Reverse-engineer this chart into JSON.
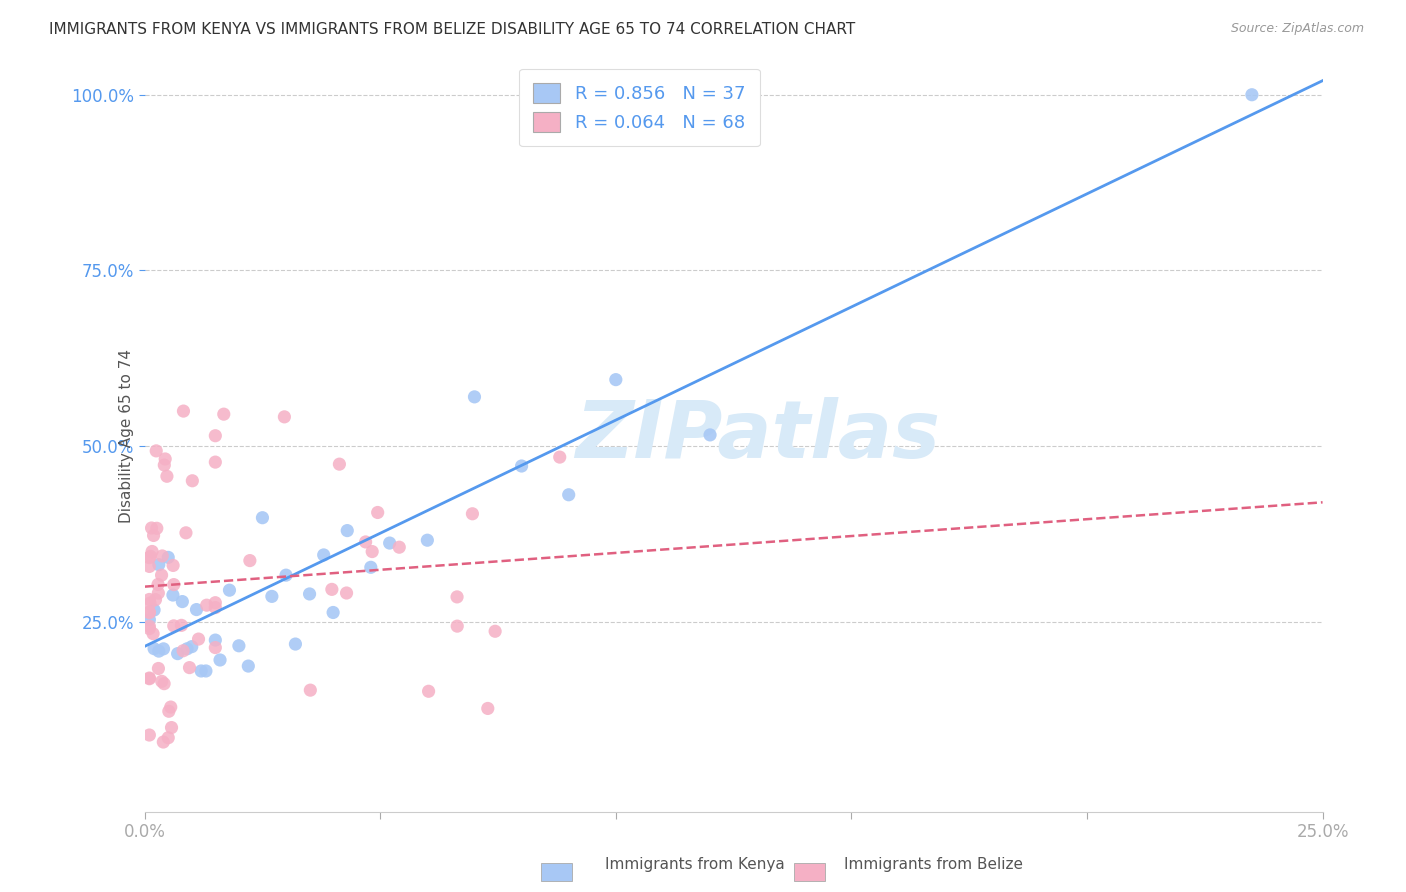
{
  "title": "IMMIGRANTS FROM KENYA VS IMMIGRANTS FROM BELIZE DISABILITY AGE 65 TO 74 CORRELATION CHART",
  "source": "Source: ZipAtlas.com",
  "ylabel": "Disability Age 65 to 74",
  "legend_kenya_label": "Immigrants from Kenya",
  "legend_belize_label": "Immigrants from Belize",
  "kenya_color": "#a8c8f5",
  "kenya_line_color": "#5599ee",
  "belize_color": "#f5b0c5",
  "belize_line_color": "#e06080",
  "watermark_color": "#d8eaf8",
  "background_color": "#ffffff",
  "R_kenya": 0.856,
  "N_kenya": 37,
  "R_belize": 0.064,
  "N_belize": 68,
  "xlim": [
    0.0,
    0.25
  ],
  "ylim": [
    -0.02,
    1.05
  ],
  "yticks": [
    0.25,
    0.5,
    0.75,
    1.0
  ],
  "ytick_labels": [
    "25.0%",
    "50.0%",
    "75.0%",
    "100.0%"
  ],
  "kenya_line_x0": 0.0,
  "kenya_line_y0": 0.215,
  "kenya_line_x1": 0.25,
  "kenya_line_y1": 1.02,
  "belize_line_x0": 0.0,
  "belize_line_y0": 0.3,
  "belize_line_x1": 0.25,
  "belize_line_y1": 0.42
}
